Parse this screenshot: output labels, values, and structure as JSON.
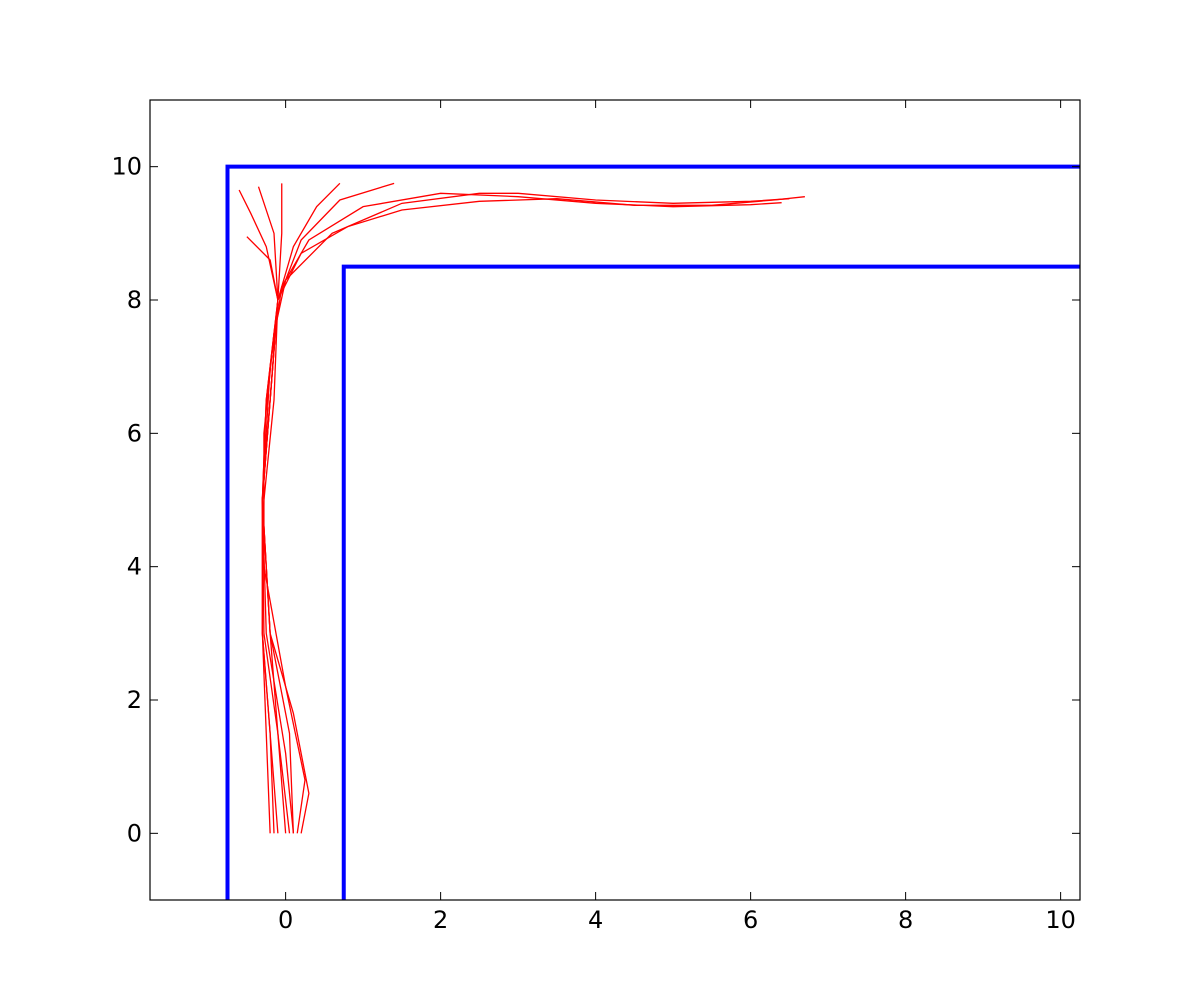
{
  "chart_data": {
    "type": "line",
    "xlim": [
      -1.75,
      10.25
    ],
    "ylim": [
      -1,
      11
    ],
    "xticks": [
      0,
      2,
      4,
      6,
      8,
      10
    ],
    "yticks": [
      0,
      2,
      4,
      6,
      8,
      10
    ],
    "walls": [
      {
        "color": "#0000ff",
        "x": [
          -0.75,
          -0.75,
          10.25
        ],
        "values": [
          -1,
          10,
          10
        ]
      },
      {
        "color": "#0000ff",
        "x": [
          0.75,
          0.75,
          10.25
        ],
        "values": [
          -1,
          8.5,
          8.5
        ]
      }
    ],
    "series": [
      {
        "color": "#ff0000",
        "x": [
          -0.2,
          -0.25,
          -0.3,
          -0.3,
          -0.25,
          -0.1,
          0.2,
          0.8,
          1.5,
          2.5,
          3.5,
          4.5,
          5.5,
          6.3,
          6.7
        ],
        "values": [
          0,
          1.5,
          3,
          5,
          6.5,
          8,
          8.7,
          9.1,
          9.35,
          9.48,
          9.52,
          9.42,
          9.42,
          9.5,
          9.55
        ]
      },
      {
        "color": "#ff0000",
        "x": [
          0.2,
          0.3,
          0.1,
          -0.2,
          -0.3,
          -0.2,
          -0.05,
          0.3,
          1.0,
          2.0,
          3.0,
          4.0,
          5.0,
          6.0,
          6.4
        ],
        "values": [
          0,
          0.6,
          1.8,
          3,
          5,
          7,
          8.2,
          8.9,
          9.4,
          9.6,
          9.55,
          9.45,
          9.4,
          9.43,
          9.46
        ]
      },
      {
        "color": "#ff0000",
        "x": [
          0,
          -0.1,
          -0.2,
          -0.3,
          -0.25,
          -0.1,
          0.2,
          0.7,
          1.4
        ],
        "values": [
          0,
          1.5,
          3,
          5,
          6.5,
          8,
          8.9,
          9.5,
          9.75
        ]
      },
      {
        "color": "#ff0000",
        "x": [
          -0.1,
          -0.2,
          -0.3,
          -0.28,
          -0.15,
          -0.1,
          -0.05,
          -0.05
        ],
        "values": [
          0,
          1.5,
          3,
          5,
          6.5,
          8,
          9,
          9.75
        ]
      },
      {
        "color": "#ff0000",
        "x": [
          0.1,
          0,
          -0.25,
          -0.3,
          -0.2,
          -0.1,
          -0.25,
          -0.45,
          -0.6
        ],
        "values": [
          0,
          1.2,
          3,
          5,
          6.5,
          8,
          8.8,
          9.3,
          9.65
        ]
      },
      {
        "color": "#ff0000",
        "x": [
          -0.15,
          -0.2,
          -0.3,
          -0.3,
          -0.2,
          -0.1,
          -0.2,
          -0.5
        ],
        "values": [
          0,
          1.5,
          3,
          5,
          6.5,
          8,
          8.6,
          8.95
        ]
      },
      {
        "color": "#ff0000",
        "x": [
          0.05,
          -0.1,
          -0.28,
          -0.3,
          -0.2,
          -0.1,
          0.1,
          0.4,
          0.7
        ],
        "values": [
          0,
          1.5,
          3,
          5,
          6.5,
          8,
          8.8,
          9.4,
          9.75
        ]
      },
      {
        "color": "#ff0000",
        "x": [
          0.15,
          0.25,
          0,
          -0.28,
          -0.28,
          -0.15,
          0,
          0.6,
          1.5,
          2.5,
          3,
          4,
          5,
          6,
          6.5
        ],
        "values": [
          0,
          0.8,
          2.2,
          4,
          6,
          7.5,
          8.3,
          9,
          9.45,
          9.6,
          9.6,
          9.5,
          9.45,
          9.48,
          9.52
        ]
      },
      {
        "color": "#ff0000",
        "x": [
          0.1,
          0.05,
          -0.2,
          -0.3,
          -0.2,
          -0.1,
          -0.15,
          -0.35
        ],
        "values": [
          0,
          1.5,
          3,
          5,
          6.5,
          8,
          9,
          9.7
        ]
      }
    ]
  }
}
